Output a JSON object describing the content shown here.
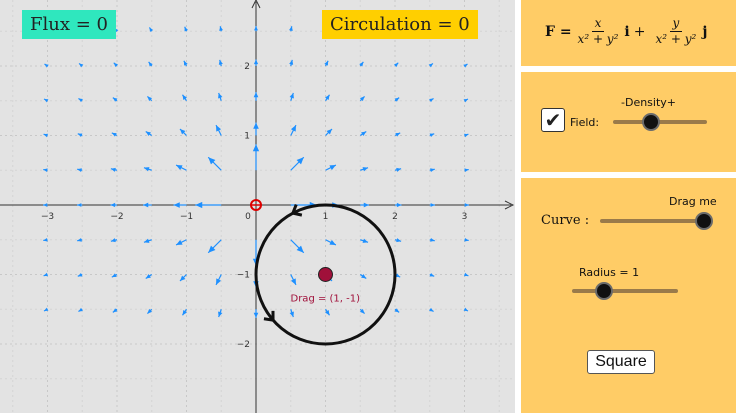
{
  "graph": {
    "flux_label": "Flux = 0",
    "circulation_label": "Circulation = 0",
    "x_ticks": [
      "−3",
      "−2",
      "−1",
      "0",
      "1",
      "2",
      "3"
    ],
    "y_ticks": [
      "2",
      "1",
      "−1",
      "−2"
    ],
    "drag_point_label": "Drag = (1, -1)",
    "colors": {
      "background": "#e3e3e3",
      "field_arrows": "#1e90ff",
      "curve": "#111111",
      "drag_point": "#a0103a",
      "origin_marker": "#dd0000",
      "flux_badge": "#2fe7be",
      "circulation_badge": "#ffcf00"
    }
  },
  "formula": {
    "lhs": "F =",
    "term1_numerator": "x",
    "term1_denominator": "x² + y²",
    "term1_unit": "i",
    "plus": "+",
    "term2_numerator": "y",
    "term2_denominator": "x² + y²",
    "term2_unit": "j"
  },
  "density_panel": {
    "slider_title": "-Density+",
    "field_label": "Field:",
    "field_checked": true,
    "density_level": 0.4
  },
  "curve_panel": {
    "drag_hint": "Drag me",
    "curve_label": "Curve :",
    "curve_slider_level": 1.0,
    "radius_label": "Radius = 1",
    "radius_level": 0.3,
    "square_button": "Square"
  },
  "panel_color": "#ffcc66"
}
